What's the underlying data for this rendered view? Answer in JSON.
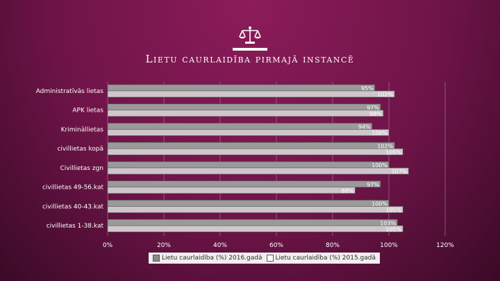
{
  "slide": {
    "title": "Lietu caurlaidība pirmajā instancē",
    "icon": "scales-of-justice-icon"
  },
  "colors": {
    "background": "#7a1650",
    "bar_2016": "#9a9a9a",
    "bar_2015": "#cfc6cb",
    "grid": "#b88aa4",
    "text": "#ffffff"
  },
  "chart_data": {
    "type": "bar",
    "orientation": "horizontal",
    "categories": [
      "Administratīvās lietas",
      "APK lietas",
      "Krimināllietas",
      "civillietas kopā",
      "Civillietas zgn",
      "civillietas 49-56.kat",
      "civillietas 40-43.kat",
      "civillietas 1-38.kat"
    ],
    "series": [
      {
        "name": "Lietu caurlaidība (%) 2016.gadā",
        "values": [
          95,
          97,
          94,
          102,
          100,
          97,
          100,
          103
        ]
      },
      {
        "name": "Lietu caurlaidība (%) 2015.gadā",
        "values": [
          102,
          98,
          100,
          105,
          107,
          88,
          105,
          105
        ]
      }
    ],
    "value_labels": [
      [
        "95%",
        "97%",
        "94%",
        "102%",
        "100%",
        "97%",
        "100%",
        "103%"
      ],
      [
        "102%",
        "98%",
        "100%",
        "105%",
        "107%",
        "88%",
        "105%",
        "105%"
      ]
    ],
    "x_ticks": [
      "0%",
      "20%",
      "40%",
      "60%",
      "80%",
      "100%",
      "120%"
    ],
    "xlim": [
      0,
      120
    ],
    "grid": true,
    "legend_position": "bottom"
  }
}
